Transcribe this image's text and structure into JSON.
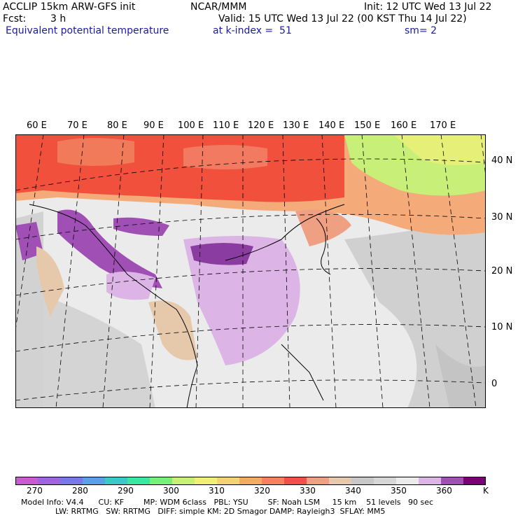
{
  "header": {
    "model": "ACCLIP 15km ARW-GFS init",
    "org": "NCAR/MMM",
    "init": "Init: 12 UTC Wed 13 Jul 22",
    "fcst_label": "Fcst:",
    "fcst_value": "3 h",
    "valid": "Valid: 15 UTC Wed 13 Jul 22 (00 KST Thu 14 Jul 22)",
    "field": "Equivalent potential temperature",
    "level": "at k-index =  51",
    "smooth": "sm= 2"
  },
  "lon_labels": [
    "60 E",
    "70 E",
    "80 E",
    "90 E",
    "100 E",
    "110 E",
    "120 E",
    "130 E",
    "140 E",
    "150 E",
    "160 E",
    "170 E"
  ],
  "lat_labels": [
    "40 N",
    "30 N",
    "20 N",
    "10 N",
    "0"
  ],
  "colorbar": {
    "unit": "K",
    "labels": [
      "270",
      "280",
      "290",
      "300",
      "310",
      "320",
      "330",
      "340",
      "350",
      "360"
    ],
    "colors": [
      "#c85ad2",
      "#a064dc",
      "#7878e6",
      "#5aa0e6",
      "#3cc8c8",
      "#3ce6a0",
      "#78f078",
      "#c8f078",
      "#f0f078",
      "#f5d278",
      "#f5aa64",
      "#f5825a",
      "#f05046",
      "#f0a082",
      "#e6c8aa",
      "#c8c8c8",
      "#d7d7d7",
      "#ebebeb",
      "#dcb4e6",
      "#a050b4",
      "#780078"
    ]
  },
  "footer": {
    "line1": "Model Info: V4.4      CU: KF        MP: WDM 6class   PBL: YSU        SF: Noah LSM     15 km    51 levels   90 sec",
    "line2": "              LW: RRTMG   SW: RRTMG   DIFF: simple KM: 2D Smagor DAMP: Rayleigh3  SFLAY: MM5"
  }
}
